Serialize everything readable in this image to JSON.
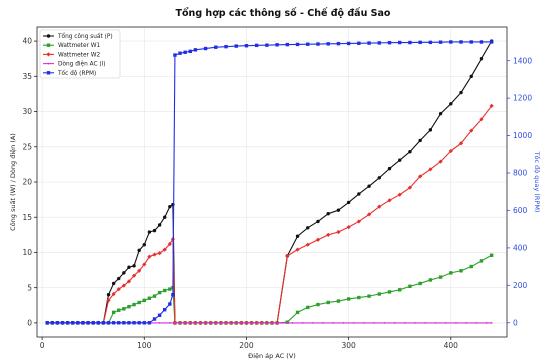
{
  "chart_data": {
    "type": "line",
    "title": "Tổng hợp các thông số - Chế độ đấu Sao",
    "xlabel": "Điện áp AC (V)",
    "ylabel": "Công suất (W) / Dòng điện (A)",
    "y2label": "Tốc độ quay (RPM)",
    "xlim": [
      -5,
      455
    ],
    "ylim": [
      -2,
      42
    ],
    "y2lim": [
      -76,
      1580
    ],
    "xticks": [
      0,
      100,
      200,
      300,
      400
    ],
    "yticks": [
      0,
      5,
      10,
      15,
      20,
      25,
      30,
      35,
      40
    ],
    "y2ticks": [
      0,
      200,
      400,
      600,
      800,
      1000,
      1200,
      1400
    ],
    "grid": true,
    "legend_position": "top-left",
    "series": [
      {
        "name": "Tổng công suất (P)",
        "axis": "left",
        "color": "#111111",
        "marker": "circle",
        "x": [
          5,
          10,
          15,
          20,
          25,
          30,
          35,
          40,
          45,
          50,
          55,
          60,
          65,
          70,
          75,
          80,
          85,
          90,
          95,
          100,
          105,
          110,
          115,
          120,
          125,
          128,
          130,
          135,
          140,
          145,
          150,
          155,
          160,
          165,
          170,
          175,
          180,
          185,
          190,
          195,
          200,
          205,
          210,
          215,
          220,
          225,
          230,
          240,
          250,
          260,
          270,
          280,
          290,
          300,
          310,
          320,
          330,
          340,
          350,
          360,
          370,
          380,
          390,
          400,
          410,
          420,
          430,
          440
        ],
        "y": [
          0,
          0,
          0,
          0,
          0,
          0,
          0,
          0,
          0,
          0,
          0,
          0,
          4,
          5.6,
          6.3,
          7.1,
          7.9,
          8.1,
          10.3,
          11.1,
          12.9,
          13.1,
          13.9,
          15,
          16.5,
          16.8,
          0,
          0,
          0,
          0,
          0,
          0,
          0,
          0,
          0,
          0,
          0,
          0,
          0,
          0,
          0,
          0,
          0,
          0,
          0,
          0,
          0,
          9.5,
          12.3,
          13.5,
          14.4,
          15.5,
          16,
          17.1,
          18.3,
          19.4,
          20.6,
          21.9,
          23.1,
          24.3,
          25.9,
          27.4,
          29.7,
          31.1,
          32.7,
          35,
          37.5,
          40
        ]
      },
      {
        "name": "Wattmeter W1",
        "axis": "left",
        "color": "#2ca02c",
        "marker": "square",
        "x": [
          5,
          10,
          15,
          20,
          25,
          30,
          35,
          40,
          45,
          50,
          55,
          60,
          65,
          70,
          75,
          80,
          85,
          90,
          95,
          100,
          105,
          110,
          115,
          120,
          125,
          128,
          130,
          135,
          140,
          145,
          150,
          155,
          160,
          165,
          170,
          175,
          180,
          185,
          190,
          195,
          200,
          205,
          210,
          215,
          220,
          225,
          230,
          240,
          250,
          260,
          270,
          280,
          290,
          300,
          310,
          320,
          330,
          340,
          350,
          360,
          370,
          380,
          390,
          400,
          410,
          420,
          430,
          440
        ],
        "y": [
          0,
          0,
          0,
          0,
          0,
          0,
          0,
          0,
          0,
          0,
          0,
          0,
          0,
          1.5,
          1.8,
          2,
          2.3,
          2.6,
          2.9,
          3.2,
          3.5,
          3.8,
          4.3,
          4.6,
          4.8,
          5,
          0,
          0,
          0,
          0,
          0,
          0,
          0,
          0,
          0,
          0,
          0,
          0,
          0,
          0,
          0,
          0,
          0,
          0,
          0,
          0,
          0,
          0.1,
          1.5,
          2.2,
          2.6,
          2.9,
          3.1,
          3.4,
          3.6,
          3.8,
          4.1,
          4.4,
          4.7,
          5.2,
          5.6,
          6.1,
          6.5,
          7.1,
          7.4,
          8,
          8.8,
          9.6
        ]
      },
      {
        "name": "Wattmeter W2",
        "axis": "left",
        "color": "#e8302f",
        "marker": "diamond",
        "x": [
          5,
          10,
          15,
          20,
          25,
          30,
          35,
          40,
          45,
          50,
          55,
          60,
          65,
          70,
          75,
          80,
          85,
          90,
          95,
          100,
          105,
          110,
          115,
          120,
          125,
          128,
          130,
          135,
          140,
          145,
          150,
          155,
          160,
          165,
          170,
          175,
          180,
          185,
          190,
          195,
          200,
          205,
          210,
          215,
          220,
          225,
          230,
          240,
          250,
          260,
          270,
          280,
          290,
          300,
          310,
          320,
          330,
          340,
          350,
          360,
          370,
          380,
          390,
          400,
          410,
          420,
          430,
          440
        ],
        "y": [
          0,
          0,
          0,
          0,
          0,
          0,
          0,
          0,
          0,
          0,
          0,
          0,
          3.2,
          4.1,
          4.8,
          5.3,
          5.9,
          6.7,
          7.4,
          8.3,
          9.4,
          9.7,
          9.9,
          10.4,
          11.2,
          11.9,
          0,
          0,
          0,
          0,
          0,
          0,
          0,
          0,
          0,
          0,
          0,
          0,
          0,
          0,
          0,
          0,
          0,
          0,
          0,
          0,
          0,
          9.5,
          10.4,
          11.1,
          11.8,
          12.5,
          12.9,
          13.6,
          14.4,
          15.4,
          16.5,
          17.4,
          18.2,
          19.2,
          20.8,
          21.8,
          22.9,
          24.4,
          25.5,
          27.3,
          28.9,
          30.8
        ]
      },
      {
        "name": "Dòng điện AC (I)",
        "axis": "left",
        "color": "#d62fd6",
        "marker": "dot",
        "x": [
          5,
          15,
          25,
          35,
          45,
          55,
          65,
          75,
          85,
          95,
          105,
          115,
          125,
          135,
          145,
          155,
          165,
          175,
          185,
          195,
          205,
          215,
          225,
          235,
          245,
          255,
          265,
          275,
          285,
          295,
          305,
          315,
          325,
          335,
          345,
          355,
          365,
          375,
          385,
          395,
          405,
          415,
          425,
          435,
          440
        ],
        "y": [
          0,
          0,
          0,
          0,
          0,
          0,
          0,
          0,
          0,
          0,
          0,
          0,
          0,
          0,
          0,
          0,
          0,
          0,
          0,
          0,
          0,
          0,
          0,
          0,
          0,
          0,
          0,
          0,
          0,
          0,
          0,
          0,
          0,
          0,
          0,
          0,
          0,
          0,
          0,
          0,
          0,
          0,
          0,
          0,
          0
        ]
      },
      {
        "name": "Tốc độ (RPM)",
        "axis": "right",
        "color": "#1f2ee8",
        "marker": "square",
        "x": [
          5,
          10,
          15,
          20,
          25,
          30,
          35,
          40,
          45,
          50,
          55,
          60,
          65,
          70,
          75,
          80,
          85,
          90,
          95,
          100,
          105,
          110,
          115,
          120,
          125,
          128,
          130,
          135,
          140,
          145,
          150,
          160,
          170,
          180,
          190,
          200,
          210,
          220,
          230,
          240,
          250,
          260,
          270,
          280,
          290,
          300,
          310,
          320,
          330,
          340,
          350,
          360,
          370,
          380,
          390,
          400,
          410,
          420,
          430,
          440
        ],
        "y": [
          0,
          0,
          0,
          0,
          0,
          0,
          0,
          0,
          0,
          0,
          0,
          0,
          0,
          0,
          0,
          0,
          0,
          0,
          0,
          0,
          0,
          20,
          40,
          70,
          100,
          150,
          1430,
          1440,
          1445,
          1450,
          1458,
          1465,
          1472,
          1475,
          1478,
          1480,
          1482,
          1483,
          1485,
          1486,
          1487,
          1488,
          1489,
          1490,
          1491,
          1492,
          1493,
          1494,
          1495,
          1496,
          1497,
          1497,
          1498,
          1498,
          1499,
          1500,
          1500,
          1500,
          1500,
          1500
        ]
      }
    ]
  }
}
